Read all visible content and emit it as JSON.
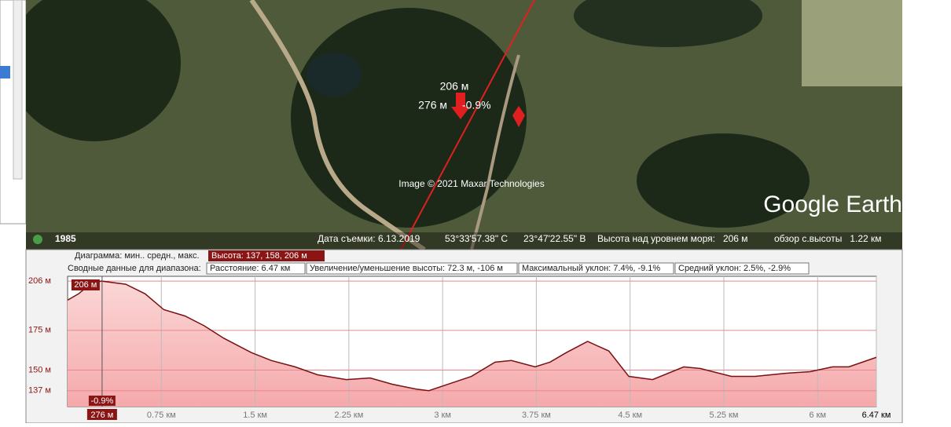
{
  "map": {
    "cursor_elevation": "206 м",
    "cursor_distance": "276 м",
    "cursor_slope": "-0.9%",
    "credit": "Image © 2021 Maxar Technologies",
    "brand": "Google Earth"
  },
  "status_bar": {
    "year": "1985",
    "date": "Дата съемки: 6.13.2019",
    "lat": "53°33'57.38\" С",
    "lon": "23°47'22.55\" В",
    "altitude": "Высота над уровнем моря:   206 м",
    "eye": "обзор с.высоты   1.22 км"
  },
  "profile_header": {
    "diagram": "Диаграмма: мин.. средн., макс.",
    "height": "Высота: 137, 158, 206 м",
    "summary": "Сводные данные для диапазона:",
    "distance": "Расстояние: 6.47 км",
    "gain": "Увеличение/уменьшение высоты: 72.3 м, -106 м",
    "max_slope": "Максимальный уклон: 7.4%, -9.1%",
    "avg_slope": "Средний уклон: 2.5%, -2.9%"
  },
  "chart_data": {
    "type": "area",
    "color": "#7a1010",
    "x": [
      0,
      0.088,
      0.18,
      0.27,
      0.465,
      0.62,
      0.77,
      0.94,
      1.09,
      1.25,
      1.47,
      1.63,
      1.82,
      2.0,
      2.23,
      2.42,
      2.6,
      2.79,
      2.89,
      3.04,
      3.23,
      3.42,
      3.55,
      3.74,
      3.86,
      3.99,
      4.16,
      4.33,
      4.49,
      4.68,
      4.93,
      5.06,
      5.31,
      5.5,
      5.75,
      5.94,
      6.12,
      6.25,
      6.47
    ],
    "values": [
      194,
      198,
      204,
      206,
      204,
      198,
      188,
      184,
      178,
      170,
      161,
      156,
      152,
      147,
      144,
      145,
      141,
      138,
      137,
      141,
      146,
      155,
      156,
      152,
      155,
      161,
      168,
      162,
      146,
      144,
      152,
      151,
      146,
      146,
      148,
      149,
      152,
      152,
      158
    ],
    "xlim": [
      0,
      6.47
    ],
    "ylim": [
      127,
      209
    ],
    "xticks": [
      {
        "value": 0.75,
        "label": "0.75 км"
      },
      {
        "value": 1.5,
        "label": "1.5 км"
      },
      {
        "value": 2.25,
        "label": "2.25 км"
      },
      {
        "value": 3,
        "label": "3 км"
      },
      {
        "value": 3.75,
        "label": "3.75 км"
      },
      {
        "value": 4.5,
        "label": "4.5 км"
      },
      {
        "value": 5.25,
        "label": "5.25 км"
      },
      {
        "value": 6,
        "label": "6 км"
      },
      {
        "value": 6.47,
        "label": "6.47 км"
      }
    ],
    "yticks": [
      {
        "value": 206,
        "label": "206 м"
      },
      {
        "value": 175,
        "label": "175 м"
      },
      {
        "value": 150,
        "label": "150 м"
      },
      {
        "value": 137,
        "label": "137 м"
      }
    ],
    "grid": true,
    "cursor": {
      "x": 0.276,
      "elevation": "206 м",
      "slope": "-0.9%",
      "distance": "276 м"
    }
  }
}
